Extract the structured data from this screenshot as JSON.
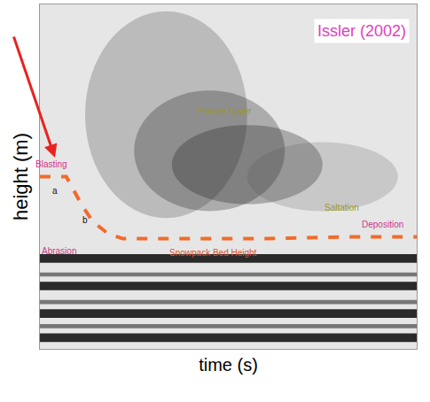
{
  "chart_data": {
    "type": "line",
    "title": "Issler (2002)",
    "x_label": "time (s)",
    "y_label": "height (m)",
    "x": [
      0,
      7,
      9,
      11,
      14,
      18,
      22,
      40,
      60,
      80,
      100
    ],
    "series": [
      {
        "color": "#f26b2a",
        "line_style": "dash",
        "values": [
          5.0,
          5.0,
          4.6,
          4.2,
          3.7,
          3.35,
          3.2,
          3.2,
          3.2,
          3.25,
          3.25
        ]
      }
    ],
    "xlim": [
      0,
      100
    ],
    "ylim": [
      0,
      10
    ],
    "tick_labels": false,
    "grid": false,
    "annotations": [
      {
        "text": "Blasting",
        "x": 3,
        "y": 5.35,
        "color": "#d0338a"
      },
      {
        "text": "a",
        "x": 4,
        "y": 4.6,
        "color": "#111111"
      },
      {
        "text": "b",
        "x": 12,
        "y": 3.75,
        "color": "#111111"
      },
      {
        "text": "Abrasion",
        "x": 5,
        "y": 2.85,
        "color": "#d0338a"
      },
      {
        "text": "Powder Layer",
        "x": 49,
        "y": 6.9,
        "color": "#9a9a18"
      },
      {
        "text": "Saltation",
        "x": 80,
        "y": 4.1,
        "color": "#9a9a18"
      },
      {
        "text": "Snowpack Bed Height",
        "x": 46,
        "y": 2.8,
        "color": "#e0502a"
      },
      {
        "text": "Deposition",
        "x": 91,
        "y": 3.6,
        "color": "#d0338a"
      }
    ]
  }
}
